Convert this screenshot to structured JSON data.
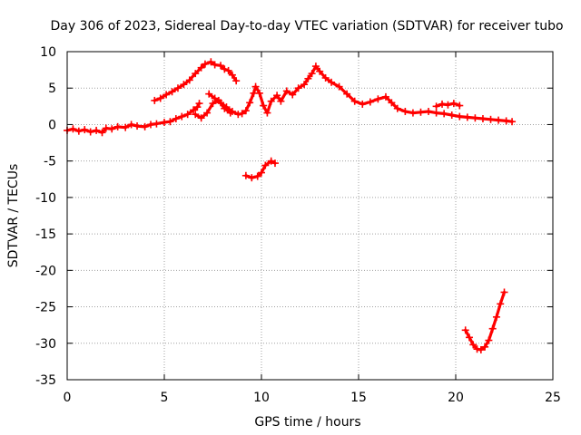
{
  "chart_data": {
    "type": "scatter",
    "title": "Day 306 of 2023, Sidereal Day-to-day VTEC variation (SDTVAR) for receiver tubo",
    "xlabel": "GPS time / hours",
    "ylabel": "SDTVAR / TECUs",
    "xlim": [
      0,
      25
    ],
    "ylim": [
      -35,
      10
    ],
    "xticks": [
      0,
      5,
      10,
      15,
      20,
      25
    ],
    "yticks": [
      -35,
      -30,
      -25,
      -20,
      -15,
      -10,
      -5,
      0,
      5,
      10
    ],
    "xtick_labels": [
      "0",
      "5",
      "10",
      "15",
      "20",
      "25"
    ],
    "ytick_labels": [
      "-35",
      "-30",
      "-25",
      "-20",
      "-15",
      "-10",
      "-5",
      "0",
      "5",
      "10"
    ],
    "grid": true,
    "marker": "plus",
    "color": "#ff0000",
    "series": [
      {
        "name": "main",
        "x": [
          0.0,
          0.3,
          0.6,
          0.9,
          1.2,
          1.5,
          1.8,
          2.0,
          2.3,
          2.6,
          3.0,
          3.3,
          3.6,
          4.0,
          4.3,
          4.6,
          5.0,
          5.3,
          5.6,
          5.9,
          6.2,
          6.5,
          6.7,
          6.8
        ],
        "y": [
          -0.8,
          -0.6,
          -0.9,
          -0.7,
          -1.0,
          -0.8,
          -1.1,
          -0.5,
          -0.6,
          -0.3,
          -0.4,
          0.0,
          -0.2,
          -0.3,
          0.0,
          0.1,
          0.3,
          0.4,
          0.8,
          1.1,
          1.4,
          2.0,
          2.4,
          2.9
        ]
      },
      {
        "name": "main",
        "x": [
          4.5,
          4.8,
          5.1,
          5.4,
          5.7,
          6.0,
          6.3,
          6.6,
          6.9,
          7.1,
          7.4,
          7.6,
          7.9,
          8.1,
          8.3,
          8.5,
          8.7
        ],
        "y": [
          3.3,
          3.6,
          4.1,
          4.5,
          5.0,
          5.5,
          6.1,
          7.0,
          7.8,
          8.3,
          8.6,
          8.2,
          8.1,
          7.6,
          7.4,
          6.8,
          6.0
        ]
      },
      {
        "name": "main",
        "x": [
          7.3,
          7.6,
          7.9,
          8.2,
          8.5,
          8.8,
          9.0,
          9.2,
          9.4,
          9.6,
          9.7,
          9.9,
          10.1,
          10.3,
          10.5,
          10.8,
          11.0,
          11.3,
          11.6,
          11.9,
          12.2,
          12.4,
          12.6,
          12.8,
          13.0,
          13.3,
          13.6,
          14.0,
          14.4,
          14.8,
          15.2,
          15.6,
          16.0,
          16.4,
          16.7,
          17.0,
          17.4,
          17.8,
          18.2,
          18.6,
          19.0,
          19.4,
          19.8,
          20.2,
          20.6,
          21.0,
          21.4,
          21.8,
          22.2,
          22.6,
          22.9
        ],
        "y": [
          4.2,
          3.6,
          3.0,
          2.4,
          1.8,
          1.4,
          1.5,
          1.9,
          3.0,
          4.3,
          5.2,
          4.3,
          2.6,
          1.6,
          3.2,
          4.0,
          3.2,
          4.6,
          4.1,
          5.0,
          5.5,
          6.3,
          7.0,
          8.0,
          7.3,
          6.4,
          5.8,
          5.2,
          4.2,
          3.2,
          2.8,
          3.1,
          3.5,
          3.8,
          3.0,
          2.2,
          1.8,
          1.6,
          1.7,
          1.8,
          1.6,
          1.5,
          1.3,
          1.1,
          1.0,
          0.9,
          0.8,
          0.7,
          0.6,
          0.5,
          0.4
        ]
      },
      {
        "name": "main",
        "x": [
          6.6,
          6.9,
          7.2,
          7.5,
          7.8,
          8.1,
          8.4
        ],
        "y": [
          1.4,
          0.9,
          1.6,
          2.9,
          3.3,
          2.2,
          1.6
        ]
      },
      {
        "name": "main",
        "x": [
          19.0,
          19.3,
          19.6,
          19.9,
          20.2
        ],
        "y": [
          2.5,
          2.8,
          2.7,
          2.9,
          2.6
        ]
      },
      {
        "name": "main",
        "x": [
          9.2,
          9.5,
          9.8,
          10.0,
          10.2,
          10.5,
          10.7
        ],
        "y": [
          -7.0,
          -7.3,
          -7.1,
          -6.6,
          -5.6,
          -5.0,
          -5.3
        ]
      },
      {
        "name": "main",
        "x": [
          20.5,
          20.7,
          20.9,
          21.1,
          21.3,
          21.5,
          21.7,
          21.9,
          22.1,
          22.3,
          22.5
        ],
        "y": [
          -28.2,
          -29.2,
          -30.2,
          -30.8,
          -30.9,
          -30.5,
          -29.6,
          -28.0,
          -26.4,
          -24.6,
          -23.0
        ]
      }
    ]
  }
}
